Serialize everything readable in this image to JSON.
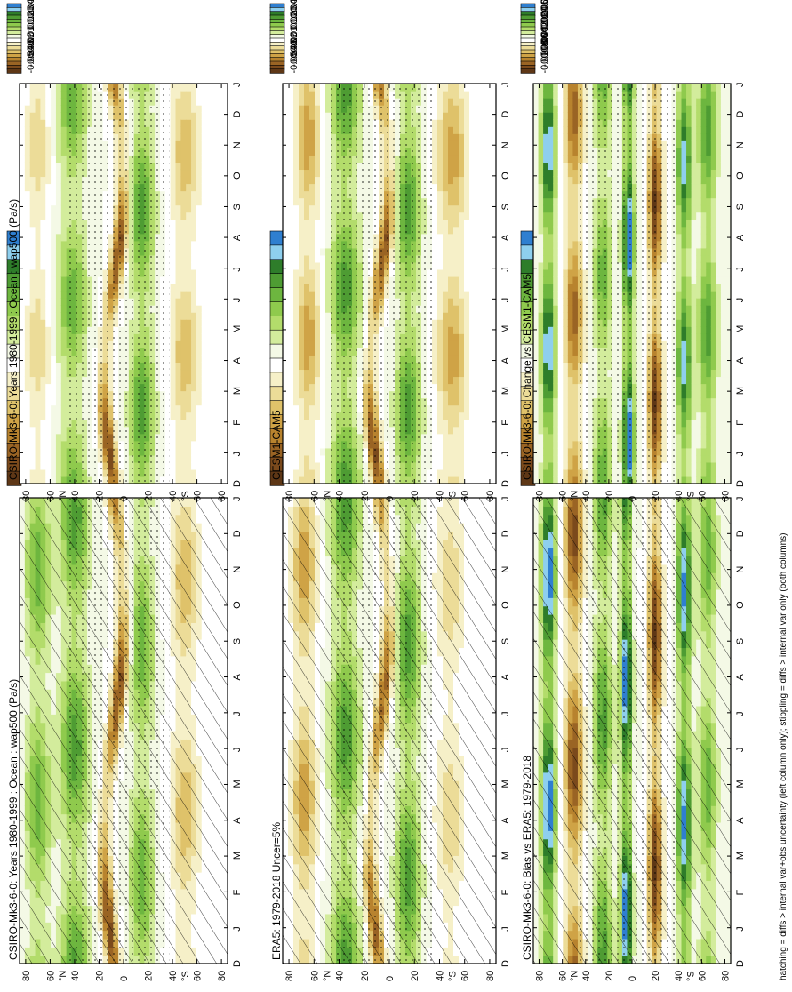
{
  "footer_note": "hatching = diffs > internal var+obs uncertainty (left column only); stippling = diffs > internal var only (both columns)",
  "colors": {
    "scale": [
      "#2f7fd0",
      "#8ecfee",
      "#2e7d2a",
      "#4e9c33",
      "#6db63f",
      "#8fca4d",
      "#b3dc6b",
      "#d3ec9c",
      "#f4f9e6",
      "#ffffff",
      "#f6f0c8",
      "#ecdc98",
      "#dfc26a",
      "#cfa346",
      "#b8832e",
      "#9a6424",
      "#7b4a1c",
      "#5e3716"
    ],
    "background": "#ffffff"
  },
  "chart_data": [
    {
      "type": "heatmap",
      "title": "CSIRO-Mk3-6-0: Years 1980-1999 : Ocean : wap500 (Pa/s)",
      "x": [
        "D",
        "J",
        "F",
        "M",
        "A",
        "M",
        "J",
        "J",
        "A",
        "S",
        "O",
        "N",
        "D",
        "J"
      ],
      "y_ticks": [
        "80",
        "60",
        "40",
        "20",
        "0",
        "20",
        "40",
        "60",
        "80"
      ],
      "y_hemi": [
        "°N",
        "°S"
      ],
      "colorbar": [
        "0.05",
        "0.04",
        "0.03",
        "0.02",
        "0.01",
        "0",
        "-0.01",
        "-0.02",
        "-0.03",
        "-0.04",
        "-0.05"
      ],
      "bands": [
        {
          "lat": 70,
          "amp": 0.025,
          "spread": 10
        },
        {
          "lat": 40,
          "amp": 0.03,
          "spread": 12
        },
        {
          "lat": 8,
          "amp": -0.04,
          "spread": 6,
          "shift": 8
        },
        {
          "lat": -15,
          "amp": 0.025,
          "spread": 10
        },
        {
          "lat": -50,
          "amp": -0.02,
          "spread": 12
        }
      ],
      "hatching": true,
      "stippling": true
    },
    {
      "type": "heatmap",
      "title": "CSIRO-Mk3-6-0: Years 1980-1999 : Ocean : wap500 (Pa/s)",
      "x": [
        "D",
        "J",
        "F",
        "M",
        "A",
        "M",
        "J",
        "J",
        "A",
        "S",
        "O",
        "N",
        "D",
        "J"
      ],
      "y_ticks": [
        "80",
        "60",
        "40",
        "20",
        "0",
        "20",
        "40",
        "60",
        "80"
      ],
      "y_hemi": [
        "°N",
        "°S"
      ],
      "colorbar": [
        "0.05",
        "0.04",
        "0.03",
        "0.02",
        "0.01",
        "0",
        "-0.01",
        "-0.02",
        "-0.03",
        "-0.04",
        "-0.05"
      ],
      "bands": [
        {
          "lat": 70,
          "amp": -0.015,
          "spread": 10
        },
        {
          "lat": 42,
          "amp": 0.025,
          "spread": 12
        },
        {
          "lat": 8,
          "amp": -0.04,
          "spread": 6,
          "shift": 8
        },
        {
          "lat": -15,
          "amp": 0.03,
          "spread": 10
        },
        {
          "lat": -50,
          "amp": -0.02,
          "spread": 12
        }
      ],
      "hatching": false,
      "stippling": true
    },
    {
      "type": "heatmap",
      "title": "ERA5: 1979-2018 Uncer=5%",
      "x": [
        "D",
        "J",
        "F",
        "M",
        "A",
        "M",
        "J",
        "J",
        "A",
        "S",
        "O",
        "N",
        "D",
        "J"
      ],
      "y_ticks": [
        "80",
        "60",
        "40",
        "20",
        "0",
        "20",
        "40",
        "60",
        "80"
      ],
      "y_hemi": [
        "°N",
        "°S"
      ],
      "colorbar": [
        "0.05",
        "0.04",
        "0.03",
        "0.02",
        "0.01",
        "0",
        "-0.01",
        "-0.02",
        "-0.03",
        "-0.04",
        "-0.05"
      ],
      "bands": [
        {
          "lat": 68,
          "amp": -0.025,
          "spread": 10
        },
        {
          "lat": 35,
          "amp": 0.03,
          "spread": 12
        },
        {
          "lat": 8,
          "amp": -0.035,
          "spread": 6,
          "shift": 8
        },
        {
          "lat": -15,
          "amp": 0.03,
          "spread": 10
        },
        {
          "lat": -48,
          "amp": -0.015,
          "spread": 12
        }
      ],
      "hatching": true,
      "stippling": true
    },
    {
      "type": "heatmap",
      "title": "CESM1-CAM5",
      "x": [
        "D",
        "J",
        "F",
        "M",
        "A",
        "M",
        "J",
        "J",
        "A",
        "S",
        "O",
        "N",
        "D",
        "J"
      ],
      "y_ticks": [
        "80",
        "60",
        "40",
        "20",
        "0",
        "20",
        "40",
        "60",
        "80"
      ],
      "y_hemi": [
        "°N",
        "°S"
      ],
      "colorbar": [
        "0.05",
        "0.04",
        "0.03",
        "0.02",
        "0.01",
        "0",
        "-0.01",
        "-0.02",
        "-0.03",
        "-0.04",
        "-0.05"
      ],
      "bands": [
        {
          "lat": 65,
          "amp": -0.025,
          "spread": 10
        },
        {
          "lat": 35,
          "amp": 0.03,
          "spread": 12
        },
        {
          "lat": 8,
          "amp": -0.04,
          "spread": 6,
          "shift": 8
        },
        {
          "lat": -15,
          "amp": 0.03,
          "spread": 10
        },
        {
          "lat": -50,
          "amp": -0.025,
          "spread": 12
        }
      ],
      "hatching": false,
      "stippling": true
    },
    {
      "type": "heatmap",
      "title": "CSIRO-Mk3-6-0: Bias vs ERA5: 1979-2018",
      "x": [
        "D",
        "J",
        "F",
        "M",
        "A",
        "M",
        "J",
        "J",
        "A",
        "S",
        "O",
        "N",
        "D",
        "J"
      ],
      "y_ticks": [
        "80",
        "60",
        "40",
        "20",
        "0",
        "20",
        "40",
        "60",
        "80"
      ],
      "y_hemi": [
        "°N",
        "°S"
      ],
      "colorbar": [
        "0.01",
        "0.008",
        "0.006",
        "0.004",
        "0.002",
        "0",
        "-0.002",
        "-0.004",
        "-0.006",
        "-0.008",
        "-0.01"
      ],
      "bands": [
        {
          "lat": 72,
          "amp": 0.01,
          "spread": 6
        },
        {
          "lat": 50,
          "amp": -0.008,
          "spread": 8
        },
        {
          "lat": 25,
          "amp": 0.006,
          "spread": 8
        },
        {
          "lat": 5,
          "amp": 0.01,
          "spread": 5
        },
        {
          "lat": -20,
          "amp": -0.009,
          "spread": 6
        },
        {
          "lat": -45,
          "amp": 0.009,
          "spread": 6
        },
        {
          "lat": -65,
          "amp": 0.005,
          "spread": 8
        }
      ],
      "hatching": true,
      "stippling": true
    },
    {
      "type": "heatmap",
      "title": "CSIRO-Mk3-6-0: Change vs CESM1-CAM5",
      "x": [
        "D",
        "J",
        "F",
        "M",
        "A",
        "M",
        "J",
        "J",
        "A",
        "S",
        "O",
        "N",
        "D",
        "J"
      ],
      "y_ticks": [
        "80",
        "60",
        "40",
        "20",
        "0",
        "20",
        "40",
        "60",
        "80"
      ],
      "y_hemi": [
        "°N",
        "°S"
      ],
      "colorbar": [
        "0.01",
        "0.008",
        "0.006",
        "0.004",
        "0.002",
        "0",
        "-0.002",
        "-0.004",
        "-0.006",
        "-0.008",
        "-0.01"
      ],
      "bands": [
        {
          "lat": 72,
          "amp": 0.009,
          "spread": 6
        },
        {
          "lat": 50,
          "amp": -0.007,
          "spread": 8
        },
        {
          "lat": 25,
          "amp": 0.005,
          "spread": 8
        },
        {
          "lat": 3,
          "amp": 0.01,
          "spread": 5
        },
        {
          "lat": -20,
          "amp": -0.009,
          "spread": 6
        },
        {
          "lat": -45,
          "amp": 0.008,
          "spread": 6
        },
        {
          "lat": -65,
          "amp": 0.006,
          "spread": 8
        }
      ],
      "hatching": false,
      "stippling": true
    }
  ]
}
